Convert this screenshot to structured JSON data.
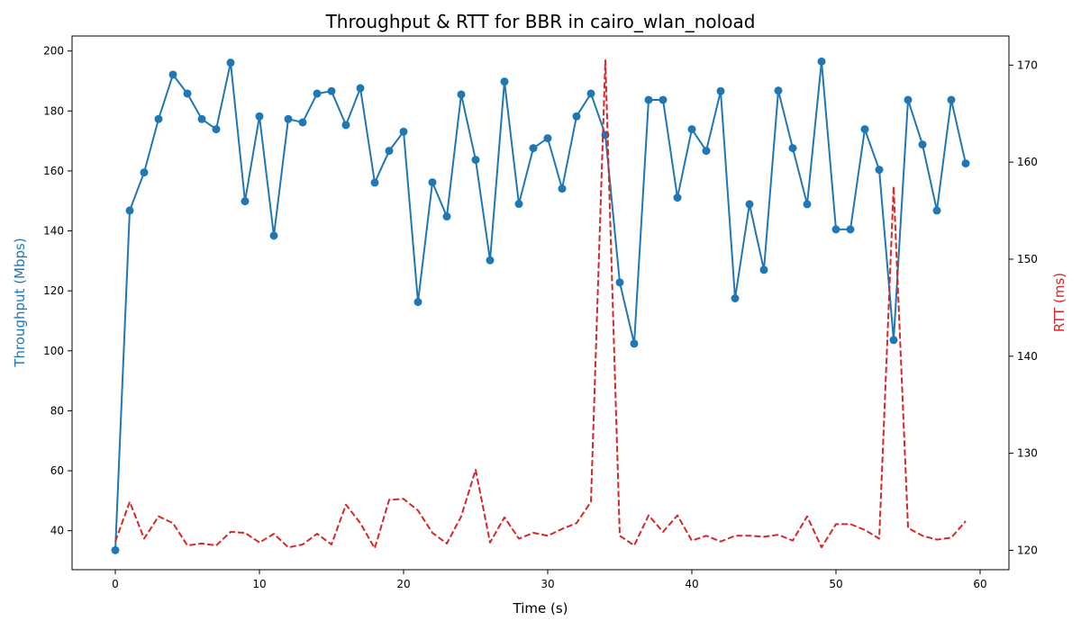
{
  "chart_data": {
    "type": "line",
    "title": "Throughput & RTT for BBR in cairo_wlan_noload",
    "xlabel": "Time (s)",
    "ylabel_left": "Throughput (Mbps)",
    "ylabel_right": "RTT (ms)",
    "xlim": [
      -3,
      62
    ],
    "ylim_left": [
      27,
      205
    ],
    "ylim_right": [
      118,
      173
    ],
    "xticks": [
      0,
      10,
      20,
      30,
      40,
      50,
      60
    ],
    "yticks_left": [
      40,
      60,
      80,
      100,
      120,
      140,
      160,
      180,
      200
    ],
    "yticks_right": [
      120,
      130,
      140,
      150,
      160,
      170
    ],
    "grid": false,
    "x": [
      0,
      1,
      2,
      3,
      4,
      5,
      6,
      7,
      8,
      9,
      10,
      11,
      12,
      13,
      14,
      15,
      16,
      17,
      18,
      19,
      20,
      21,
      22,
      23,
      24,
      25,
      26,
      27,
      28,
      29,
      30,
      31,
      32,
      33,
      34,
      35,
      36,
      37,
      38,
      39,
      40,
      41,
      42,
      43,
      44,
      45,
      46,
      47,
      48,
      49,
      50,
      51,
      52,
      53,
      54,
      55,
      56,
      57,
      58,
      59
    ],
    "series": [
      {
        "axis": "left",
        "color": "#1f77b4",
        "style": "solid-markers",
        "values": [
          33.5,
          146.8,
          159.5,
          177.3,
          192.1,
          185.8,
          177.3,
          173.9,
          196.1,
          149.9,
          178.2,
          138.4,
          177.3,
          176.2,
          185.8,
          186.6,
          175.3,
          187.6,
          156.1,
          166.7,
          173.1,
          116.3,
          156.2,
          144.8,
          185.5,
          163.7,
          130.2,
          189.8,
          149.0,
          167.6,
          170.9,
          154.1,
          178.2,
          185.8,
          172.0,
          122.8,
          102.4,
          183.7,
          183.7,
          151.1,
          173.9,
          166.7,
          186.6,
          117.5,
          148.9,
          127.0,
          186.8,
          167.6,
          148.9,
          196.5,
          140.5,
          140.5,
          173.9,
          160.4,
          103.6,
          183.7,
          168.8,
          146.8,
          183.7,
          162.5
        ]
      },
      {
        "axis": "right",
        "color": "#d62728",
        "style": "dashed",
        "values": [
          120.9,
          125.0,
          121.2,
          123.5,
          122.8,
          120.5,
          120.7,
          120.5,
          121.9,
          121.8,
          120.8,
          121.7,
          120.3,
          120.6,
          121.7,
          120.6,
          124.7,
          122.8,
          120.2,
          125.2,
          125.3,
          124.1,
          121.8,
          120.7,
          123.5,
          128.3,
          120.8,
          123.4,
          121.2,
          121.8,
          121.5,
          122.2,
          122.8,
          125.0,
          170.5,
          121.5,
          120.5,
          123.6,
          121.9,
          123.6,
          121.0,
          121.5,
          120.9,
          121.5,
          121.5,
          121.4,
          121.6,
          121.0,
          123.5,
          120.3,
          122.7,
          122.7,
          122.1,
          121.2,
          157.5,
          122.3,
          121.5,
          121.1,
          121.3,
          123.0
        ]
      }
    ]
  }
}
